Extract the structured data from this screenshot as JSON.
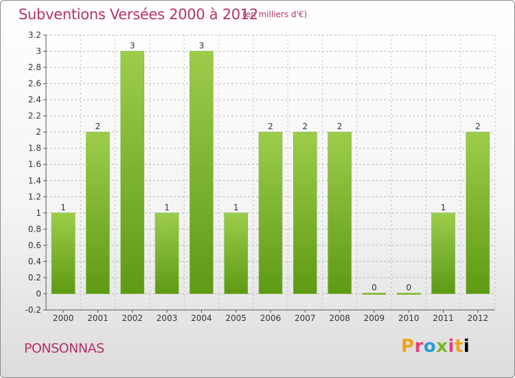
{
  "header": {
    "title": "Subventions Versées 2000 à 2012",
    "subtitle": "(en milliers d'€)"
  },
  "footer": {
    "city": "PONSONNAS",
    "logo_letters": [
      "P",
      "r",
      "o",
      "x",
      "i",
      "t",
      "i"
    ]
  },
  "colors": {
    "title": "#b5316a",
    "bar_top": "#9ccd4a",
    "bar_bottom": "#5e9a14",
    "grid": "#b9b9b9"
  },
  "chart_data": {
    "type": "bar",
    "title": "Subventions Versées 2000 à 2012",
    "subtitle": "(en milliers d'€)",
    "categories": [
      "2000",
      "2001",
      "2002",
      "2003",
      "2004",
      "2005",
      "2006",
      "2007",
      "2008",
      "2009",
      "2010",
      "2011",
      "2012"
    ],
    "values": [
      1,
      2,
      3,
      1,
      3,
      1,
      2,
      2,
      2,
      0,
      0,
      1,
      2
    ],
    "data_labels": [
      "1",
      "2",
      "3",
      "1",
      "3",
      "1",
      "2",
      "2",
      "2",
      "0",
      "0",
      "1",
      "2"
    ],
    "ylim": [
      -0.2,
      3.2
    ],
    "yticks": [
      "-0.2",
      "0",
      "0.2",
      "0.4",
      "0.6",
      "0.8",
      "1",
      "1.2",
      "1.4",
      "1.6",
      "1.8",
      "2",
      "2.2",
      "2.4",
      "2.6",
      "2.8",
      "3",
      "3.2"
    ],
    "ytick_values": [
      -0.2,
      0,
      0.2,
      0.4,
      0.6,
      0.8,
      1,
      1.2,
      1.4,
      1.6,
      1.8,
      2,
      2.2,
      2.4,
      2.6,
      2.8,
      3,
      3.2
    ],
    "grid": true,
    "xlabel": "",
    "ylabel": ""
  }
}
